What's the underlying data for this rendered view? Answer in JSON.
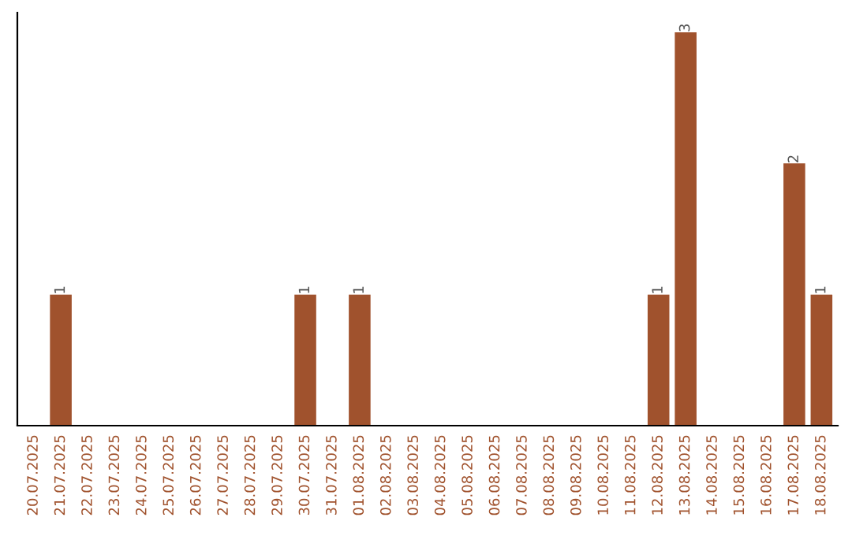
{
  "chart_data": {
    "type": "bar",
    "categories": [
      "20.07.2025",
      "21.07.2025",
      "22.07.2025",
      "23.07.2025",
      "24.07.2025",
      "25.07.2025",
      "26.07.2025",
      "27.07.2025",
      "28.07.2025",
      "29.07.2025",
      "30.07.2025",
      "31.07.2025",
      "01.08.2025",
      "02.08.2025",
      "03.08.2025",
      "04.08.2025",
      "05.08.2025",
      "06.08.2025",
      "07.08.2025",
      "08.08.2025",
      "09.08.2025",
      "10.08.2025",
      "11.08.2025",
      "12.08.2025",
      "13.08.2025",
      "14.08.2025",
      "15.08.2025",
      "16.08.2025",
      "17.08.2025",
      "18.08.2025"
    ],
    "values": [
      0,
      1,
      0,
      0,
      0,
      0,
      0,
      0,
      0,
      0,
      1,
      0,
      1,
      0,
      0,
      0,
      0,
      0,
      0,
      0,
      0,
      0,
      0,
      1,
      3,
      0,
      0,
      0,
      2,
      1
    ],
    "value_labels": [
      null,
      "1",
      null,
      null,
      null,
      null,
      null,
      null,
      null,
      null,
      "1",
      null,
      "1",
      null,
      null,
      null,
      null,
      null,
      null,
      null,
      null,
      null,
      null,
      "1",
      "3",
      null,
      null,
      null,
      "2",
      "1"
    ],
    "color": "#a0522d",
    "ylim": [
      0,
      3.15
    ],
    "tick_labels": "x",
    "grid": false,
    "legend": false
  }
}
